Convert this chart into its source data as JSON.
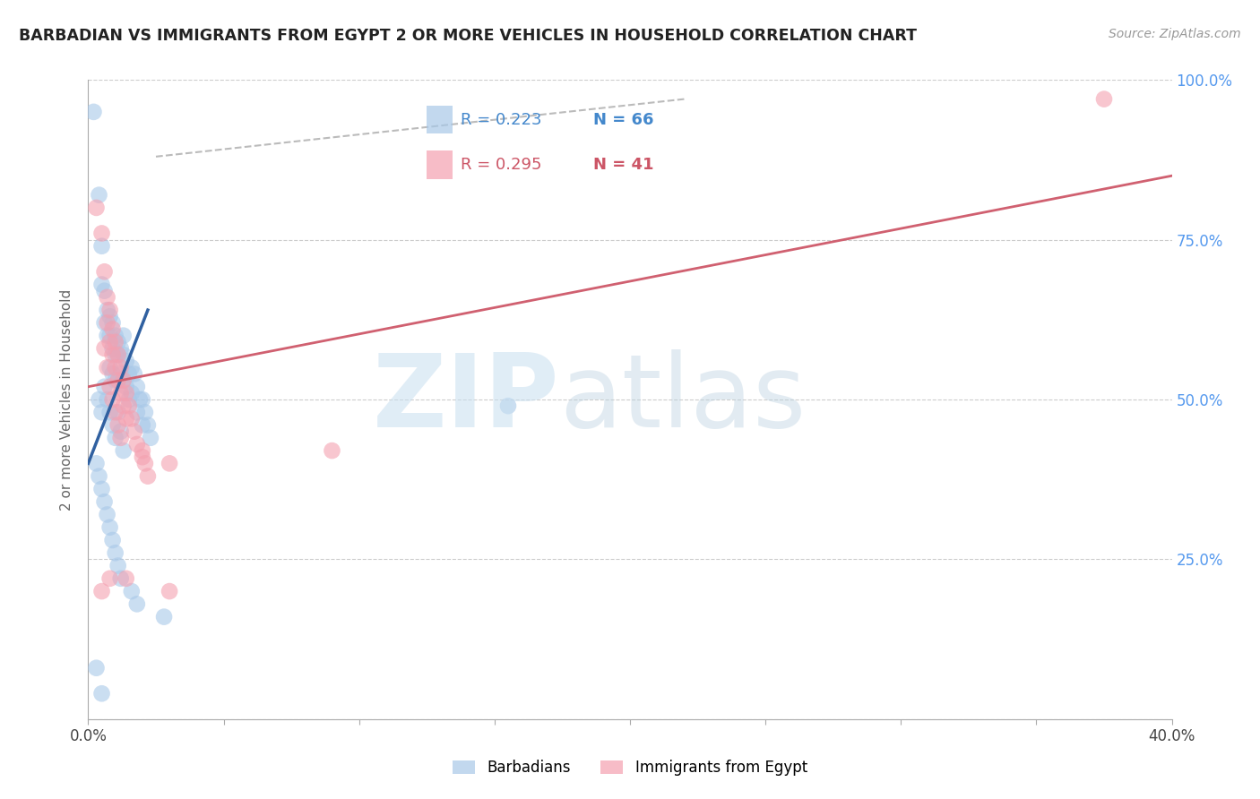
{
  "title": "BARBADIAN VS IMMIGRANTS FROM EGYPT 2 OR MORE VEHICLES IN HOUSEHOLD CORRELATION CHART",
  "source": "Source: ZipAtlas.com",
  "ylabel": "2 or more Vehicles in Household",
  "xlim": [
    0.0,
    0.4
  ],
  "ylim": [
    0.0,
    1.0
  ],
  "blue_R": 0.223,
  "blue_N": 66,
  "pink_R": 0.295,
  "pink_N": 41,
  "blue_color": "#a8c8e8",
  "pink_color": "#f4a0b0",
  "blue_line_color": "#3060a0",
  "pink_line_color": "#d06070",
  "legend_label_blue": "Barbadians",
  "legend_label_pink": "Immigrants from Egypt",
  "blue_scatter_x": [
    0.002,
    0.004,
    0.005,
    0.005,
    0.006,
    0.006,
    0.007,
    0.007,
    0.008,
    0.008,
    0.008,
    0.009,
    0.009,
    0.009,
    0.01,
    0.01,
    0.01,
    0.011,
    0.011,
    0.011,
    0.012,
    0.012,
    0.013,
    0.013,
    0.013,
    0.014,
    0.014,
    0.015,
    0.015,
    0.016,
    0.016,
    0.017,
    0.018,
    0.018,
    0.019,
    0.02,
    0.02,
    0.021,
    0.022,
    0.023,
    0.004,
    0.005,
    0.006,
    0.007,
    0.008,
    0.009,
    0.01,
    0.011,
    0.012,
    0.013,
    0.003,
    0.004,
    0.005,
    0.006,
    0.007,
    0.008,
    0.009,
    0.01,
    0.011,
    0.012,
    0.016,
    0.018,
    0.028,
    0.155,
    0.003,
    0.005
  ],
  "blue_scatter_y": [
    0.95,
    0.82,
    0.74,
    0.68,
    0.67,
    0.62,
    0.64,
    0.6,
    0.63,
    0.6,
    0.55,
    0.62,
    0.58,
    0.54,
    0.6,
    0.57,
    0.53,
    0.59,
    0.57,
    0.53,
    0.58,
    0.54,
    0.6,
    0.57,
    0.53,
    0.56,
    0.52,
    0.54,
    0.5,
    0.55,
    0.51,
    0.54,
    0.52,
    0.48,
    0.5,
    0.5,
    0.46,
    0.48,
    0.46,
    0.44,
    0.5,
    0.48,
    0.52,
    0.5,
    0.48,
    0.46,
    0.44,
    0.48,
    0.45,
    0.42,
    0.4,
    0.38,
    0.36,
    0.34,
    0.32,
    0.3,
    0.28,
    0.26,
    0.24,
    0.22,
    0.2,
    0.18,
    0.16,
    0.49,
    0.08,
    0.04
  ],
  "pink_scatter_x": [
    0.003,
    0.005,
    0.006,
    0.007,
    0.007,
    0.008,
    0.008,
    0.009,
    0.009,
    0.01,
    0.01,
    0.011,
    0.011,
    0.012,
    0.012,
    0.013,
    0.013,
    0.014,
    0.014,
    0.015,
    0.016,
    0.017,
    0.018,
    0.02,
    0.021,
    0.022,
    0.006,
    0.007,
    0.008,
    0.009,
    0.01,
    0.011,
    0.012,
    0.02,
    0.03,
    0.005,
    0.008,
    0.014,
    0.03,
    0.375,
    0.09
  ],
  "pink_scatter_y": [
    0.8,
    0.76,
    0.7,
    0.66,
    0.62,
    0.64,
    0.59,
    0.61,
    0.57,
    0.59,
    0.55,
    0.57,
    0.53,
    0.55,
    0.51,
    0.53,
    0.49,
    0.51,
    0.47,
    0.49,
    0.47,
    0.45,
    0.43,
    0.41,
    0.4,
    0.38,
    0.58,
    0.55,
    0.52,
    0.5,
    0.48,
    0.46,
    0.44,
    0.42,
    0.4,
    0.2,
    0.22,
    0.22,
    0.2,
    0.97,
    0.42
  ],
  "blue_line_x": [
    0.0,
    0.022
  ],
  "blue_line_y": [
    0.4,
    0.64
  ],
  "pink_line_x": [
    0.0,
    0.4
  ],
  "pink_line_y": [
    0.52,
    0.85
  ],
  "dash_line_x": [
    0.025,
    0.22
  ],
  "dash_line_y": [
    0.88,
    0.97
  ]
}
